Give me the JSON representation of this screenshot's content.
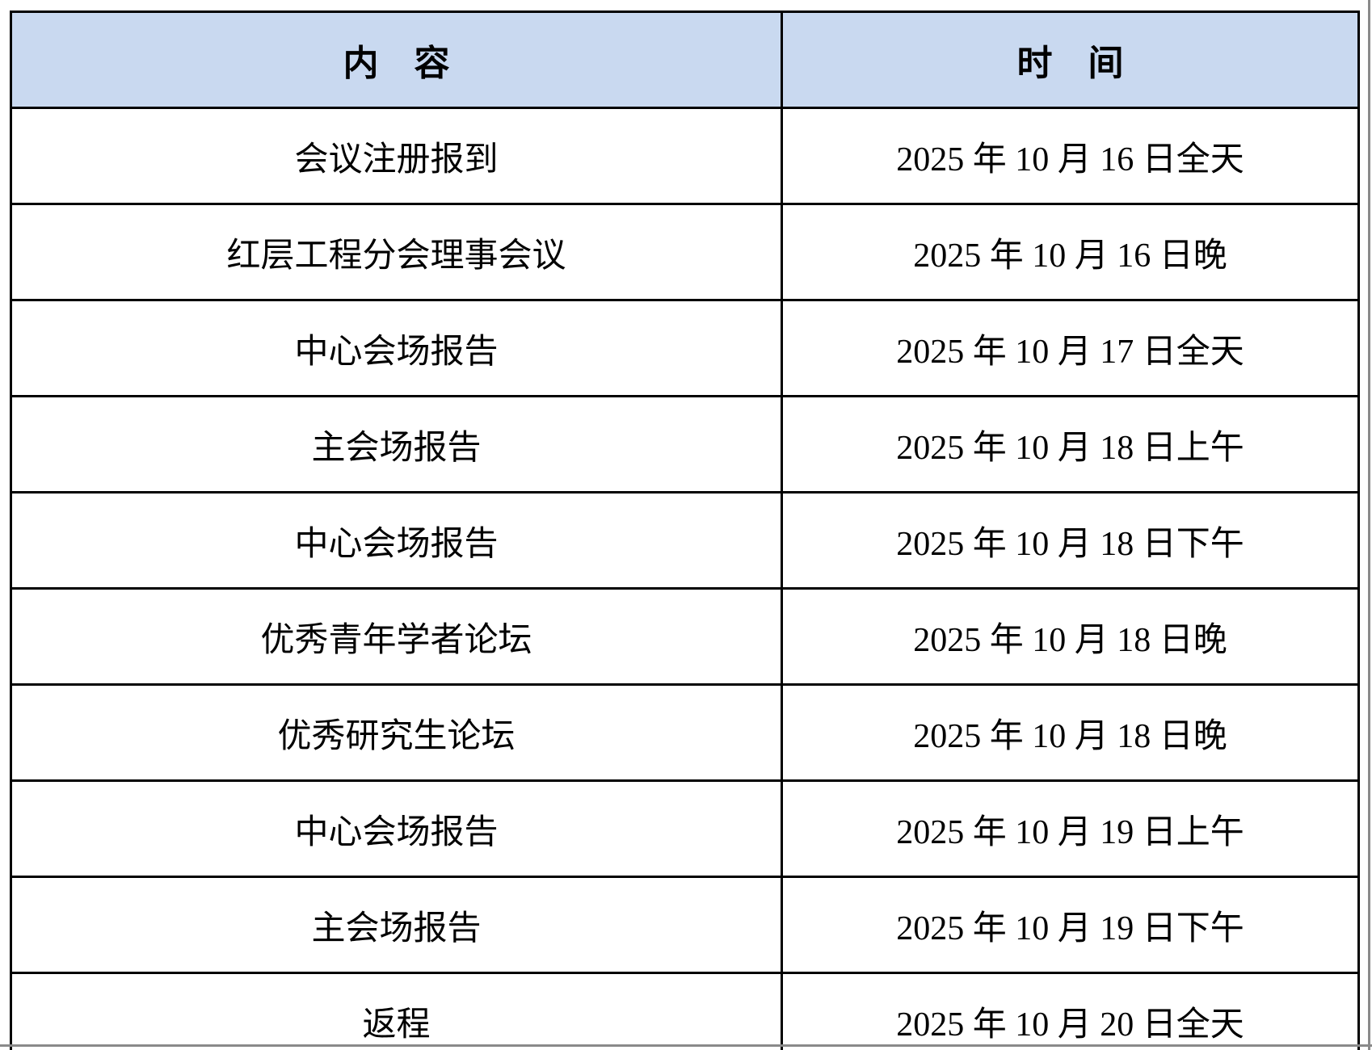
{
  "table": {
    "headers": {
      "content": "内　容",
      "time": "时　间"
    },
    "rows": [
      {
        "content": "会议注册报到",
        "time": "2025 年 10 月 16 日全天"
      },
      {
        "content": "红层工程分会理事会议",
        "time": "2025 年 10 月 16 日晚"
      },
      {
        "content": "中心会场报告",
        "time": "2025 年 10 月 17 日全天"
      },
      {
        "content": "主会场报告",
        "time": "2025 年 10 月 18 日上午"
      },
      {
        "content": "中心会场报告",
        "time": "2025 年 10 月 18 日下午"
      },
      {
        "content": "优秀青年学者论坛",
        "time": "2025 年 10 月 18 日晚"
      },
      {
        "content": "优秀研究生论坛",
        "time": "2025 年 10 月 18 日晚"
      },
      {
        "content": "中心会场报告",
        "time": "2025 年 10 月 19 日上午"
      },
      {
        "content": "主会场报告",
        "time": "2025 年 10 月 19 日下午"
      },
      {
        "content": "返程",
        "time": "2025 年 10 月 20 日全天"
      }
    ],
    "colors": {
      "header_bg": "#c9d9f0",
      "border": "#000000",
      "page_edge": "#8a8a8a"
    }
  }
}
